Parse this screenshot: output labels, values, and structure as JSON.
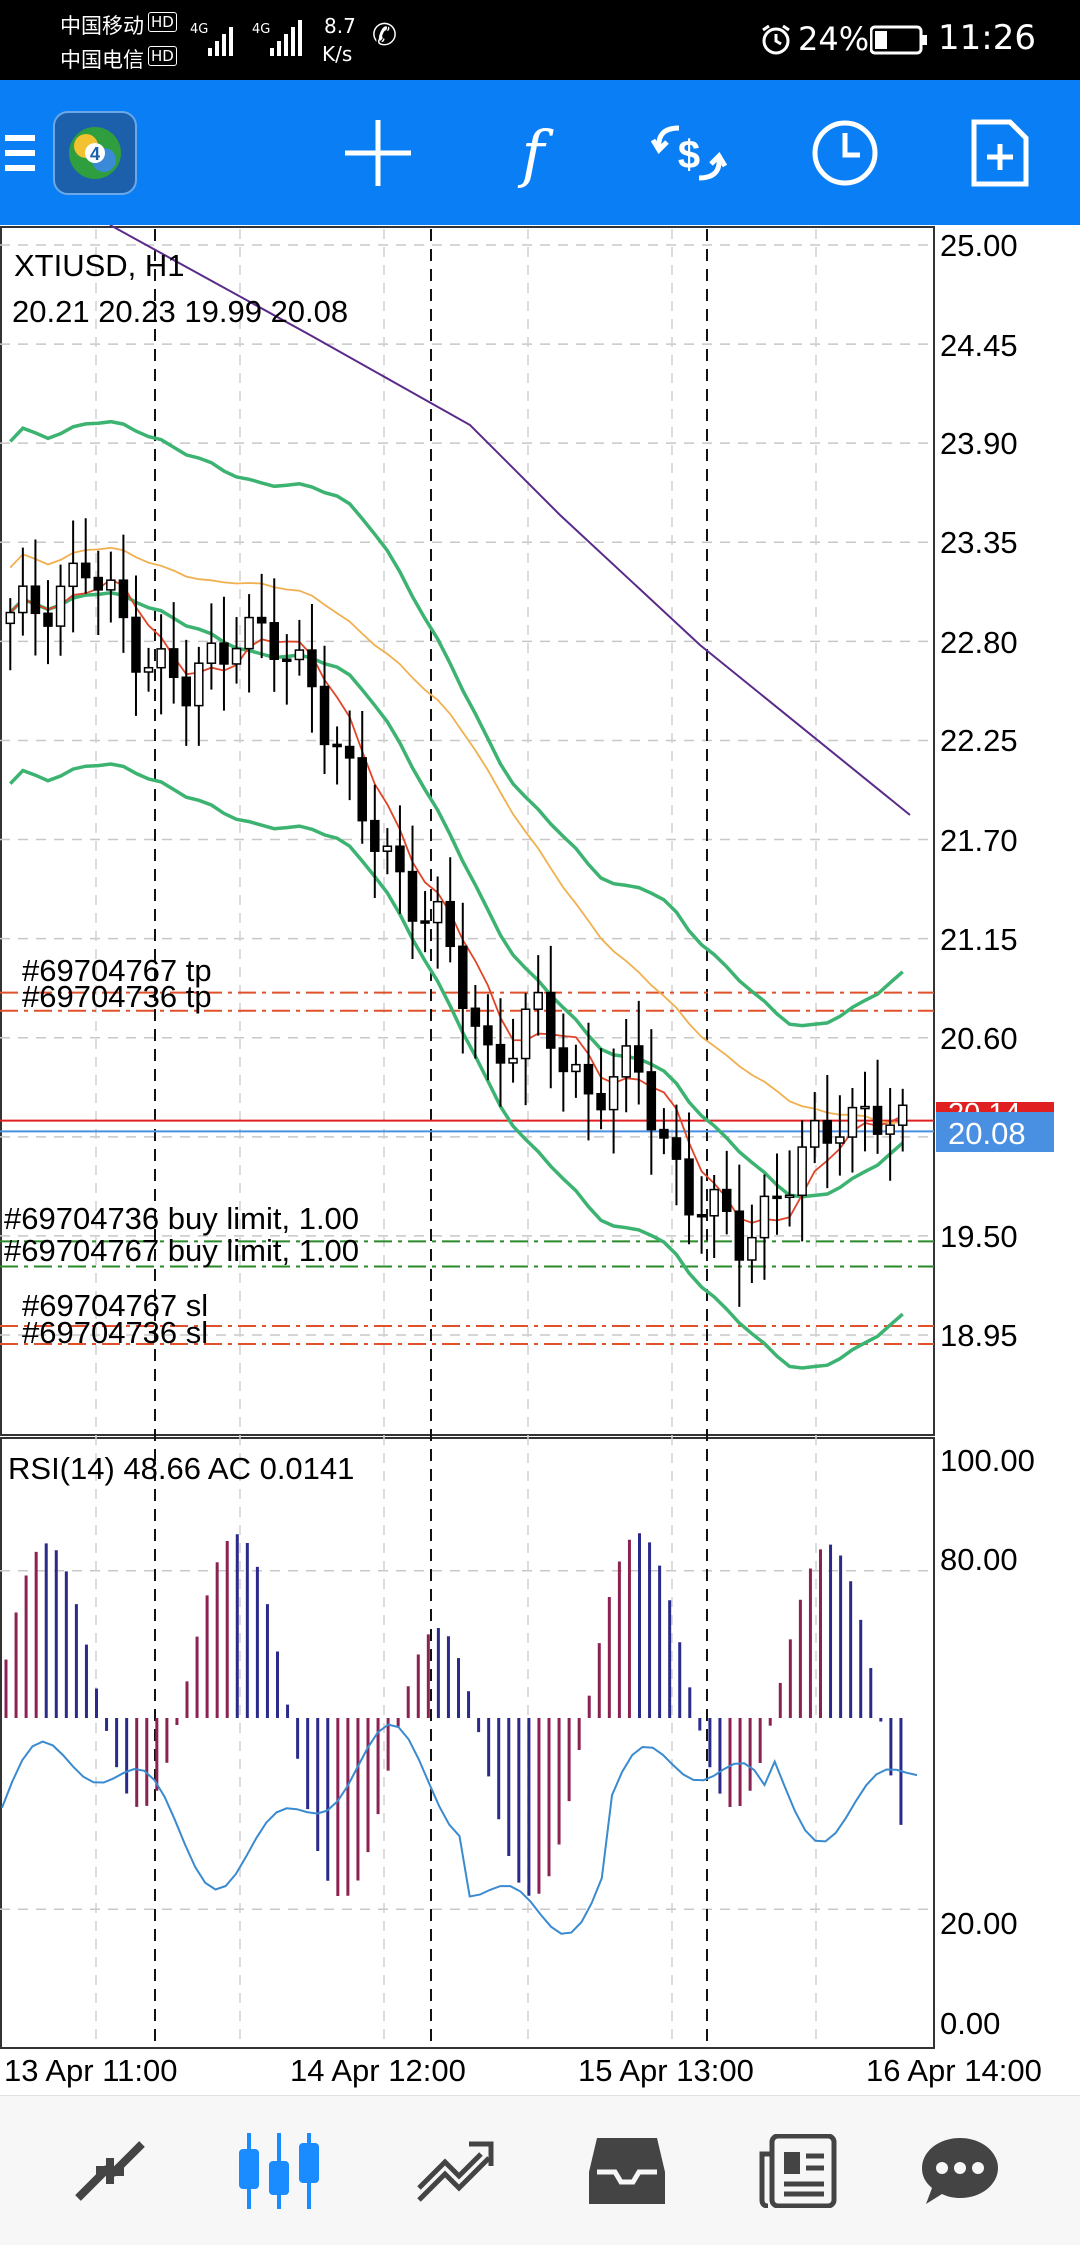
{
  "status_bar": {
    "carrier1": "中国移动",
    "carrier2": "中国电信",
    "hd": "HD",
    "net1": "4G",
    "net2": "4G",
    "speed_value": "8.7",
    "speed_unit": "K/s",
    "battery": "24%",
    "time": "11:26"
  },
  "toolbar": {
    "icons": [
      "menu-icon",
      "metatrader-logo-icon",
      "crosshair-icon",
      "indicators-icon",
      "trade-icon",
      "timeframe-clock-icon",
      "new-order-icon"
    ],
    "indicators_glyph": "f"
  },
  "chart": {
    "symbol": "XTIUSD, H1",
    "ohlc": "20.21 20.23 19.99 20.08",
    "price_axis": [
      "25.00",
      "24.45",
      "23.90",
      "23.35",
      "22.80",
      "22.25",
      "21.70",
      "21.15",
      "20.60",
      "19.50",
      "18.95"
    ],
    "bid_price": "20.08",
    "ask_price": "20.14",
    "order_labels": {
      "tp1": "#69704767 tp",
      "tp2": "#69704736 tp",
      "buy1": "#69704736 buy limit, 1.00",
      "buy2": "#69704767 buy limit, 1.00",
      "sl1": "#69704767 sl",
      "sl2": "#69704736 sl"
    },
    "colors": {
      "bollinger": "#3cb371",
      "ma_fast": "#e0452a",
      "ma_mid": "#f0b050",
      "ma_slow": "#5a2a8a",
      "bid_line": "#e02020",
      "ask_line": "#4a90e2",
      "tp_sl": "#e0502a",
      "buy_limit": "#2a8a2a"
    }
  },
  "indicator": {
    "title": "RSI(14) 48.66 AC 0.0141",
    "axis": [
      "100.00",
      "80.00",
      "20.00",
      "0.00"
    ],
    "colors": {
      "ac_up": "#8b2252",
      "ac_down": "#2a2a8a",
      "rsi": "#3a8ad0"
    }
  },
  "time_axis": [
    "13 Apr 11:00",
    "14 Apr 12:00",
    "15 Apr 13:00",
    "16 Apr 14:00"
  ],
  "bottom_nav": {
    "items": [
      "quotes-icon",
      "chart-icon",
      "trade-icon",
      "history-icon",
      "news-icon",
      "chat-icon"
    ],
    "active": "chart-icon",
    "active_color": "#1a8cff",
    "inactive_color": "#444444"
  }
}
